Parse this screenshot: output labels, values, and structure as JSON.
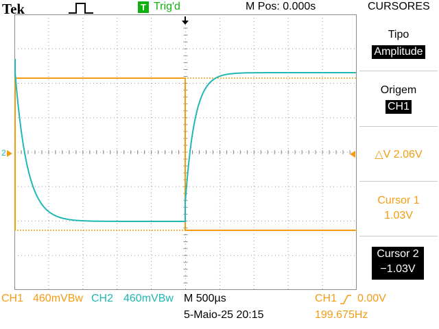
{
  "header": {
    "brand": "Tek",
    "acq_icon": "pulse-square-icon",
    "trigger_badge": "T",
    "trigger_status": "Trig'd",
    "position": "M Pos: 0.000s",
    "menu_title": "CURSORES"
  },
  "side_menu": {
    "tipo_label": "Tipo",
    "tipo_value": "Amplitude",
    "origem_label": "Origem",
    "origem_value": "CH1",
    "delta_v": "△V 2.06V",
    "cursor1_label": "Cursor 1",
    "cursor1_value": "1.03V",
    "cursor2_label": "Cursor 2",
    "cursor2_value": "−1.03V"
  },
  "status": {
    "ch1_label": "CH1",
    "ch1_scale": "460mVBw",
    "ch2_label": "CH2",
    "ch2_scale": "460mVBw",
    "timebase": "M 500µs",
    "trigger_source": "CH1",
    "trigger_slope_icon": "rising-edge-icon",
    "trigger_level": "0.00V",
    "datetime": "5-Maio-25 20:15",
    "frequency": "199.675Hz",
    "ch2_marker": "2"
  },
  "colors": {
    "ch1": "#f39c12",
    "ch2": "#1fb7b3",
    "trigger_green": "#11b111",
    "grid": "#8a8a8a"
  }
}
